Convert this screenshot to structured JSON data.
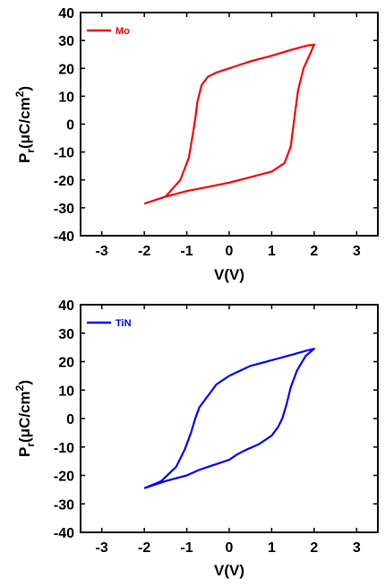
{
  "chart_data": [
    {
      "type": "line",
      "xlabel": "V(V)",
      "ylabel_main": "P",
      "ylabel_sub": "r",
      "ylabel_rest": "(μC/cm",
      "ylabel_sup": "2",
      "ylabel_close": ")",
      "xlim": [
        -3.5,
        3.5
      ],
      "ylim": [
        -40,
        40
      ],
      "xticks": [
        -3,
        -2,
        -1,
        0,
        1,
        2,
        3
      ],
      "xtick_labels": [
        "-3",
        "-2",
        "-1",
        "0",
        "1",
        "2",
        "3"
      ],
      "yticks": [
        -40,
        -30,
        -20,
        -10,
        0,
        10,
        20,
        30,
        40
      ],
      "ytick_labels": [
        "-40",
        "-30",
        "-20",
        "-10",
        "0",
        "10",
        "20",
        "30",
        "40"
      ],
      "legend_position": "top-left",
      "series": [
        {
          "name": "Mo",
          "color": "#ff0000",
          "x": [
            -2.0,
            -1.5,
            -1.15,
            -0.95,
            -0.85,
            -0.8,
            -0.75,
            -0.65,
            -0.5,
            -0.3,
            0.0,
            0.5,
            1.0,
            1.5,
            1.85,
            1.95,
            2.0,
            1.9,
            1.75,
            1.62,
            1.55,
            1.5,
            1.45,
            1.3,
            1.0,
            0.5,
            0.0,
            -0.5,
            -1.0,
            -1.5,
            -2.0
          ],
          "y": [
            -28.5,
            -26,
            -20,
            -12,
            -3,
            2,
            8,
            14,
            17,
            18.5,
            20,
            22.5,
            24.5,
            26.8,
            28.2,
            28.4,
            28.5,
            25,
            20,
            12,
            4,
            -2,
            -8,
            -14,
            -17,
            -19,
            -21,
            -22.5,
            -24,
            -26,
            -28.5
          ]
        },
        {
          "name": "TiN",
          "color": "#0000ff",
          "x": [
            -2.0,
            -1.6,
            -1.25,
            -1.05,
            -0.9,
            -0.8,
            -0.7,
            -0.5,
            -0.3,
            0.0,
            0.5,
            1.0,
            1.5,
            1.85,
            2.0,
            1.8,
            1.6,
            1.45,
            1.35,
            1.25,
            1.15,
            1.0,
            0.7,
            0.4,
            0.2,
            0.0,
            -0.3,
            -0.7,
            -1.0,
            -1.5,
            -2.0
          ],
          "y": [
            -24.5,
            -22,
            -17,
            -11,
            -5,
            0,
            4,
            8,
            12,
            15,
            18.5,
            20.5,
            22.5,
            24,
            24.5,
            22,
            17,
            11,
            5,
            0,
            -3,
            -6,
            -9,
            -11,
            -12.5,
            -14.5,
            -16,
            -18,
            -20,
            -22,
            -24.5
          ]
        }
      ]
    }
  ]
}
